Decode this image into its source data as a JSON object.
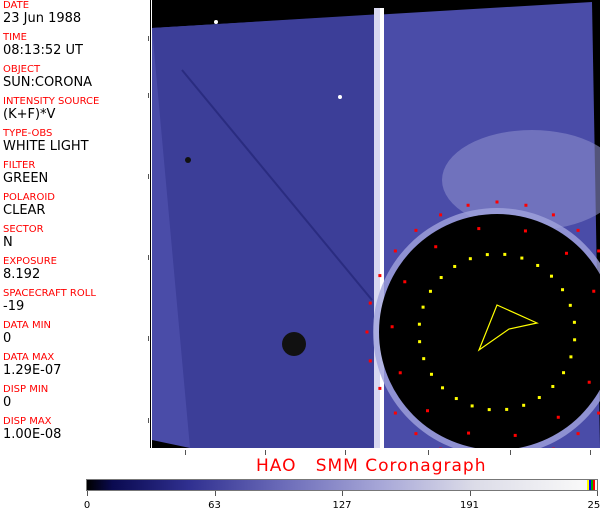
{
  "header_fields": [
    {
      "label": "DATE",
      "value": "23 Jun 1988"
    },
    {
      "label": "TIME",
      "value": "08:13:52 UT"
    },
    {
      "label": "OBJECT",
      "value": "SUN:CORONA"
    },
    {
      "label": "INTENSITY SOURCE",
      "value": "(K+F)*V"
    },
    {
      "label": "TYPE-OBS",
      "value": "WHITE LIGHT"
    },
    {
      "label": "FILTER",
      "value": "GREEN"
    },
    {
      "label": "POLAROID",
      "value": "CLEAR"
    },
    {
      "label": "SECTOR",
      "value": "N"
    },
    {
      "label": "EXPOSURE",
      "value": "8.192"
    },
    {
      "label": "SPACECRAFT ROLL",
      "value": "-19"
    },
    {
      "label": "DATA MIN",
      "value": "0"
    },
    {
      "label": "DATA MAX",
      "value": "1.29E-07"
    },
    {
      "label": "DISP MIN",
      "value": "0"
    },
    {
      "label": "DISP MAX",
      "value": "1.00E-08"
    }
  ],
  "title": "HAO   SMM Coronagraph",
  "colorbar": {
    "ticks": [
      "0",
      "63",
      "127",
      "191",
      "255"
    ],
    "colors": {
      "low": "#000000",
      "mid": "#6a6ab8",
      "high": "#f8f8f8"
    },
    "end_colors": [
      "#ffff00",
      "#0000ff",
      "#00aa00",
      "#ff0000"
    ]
  }
}
